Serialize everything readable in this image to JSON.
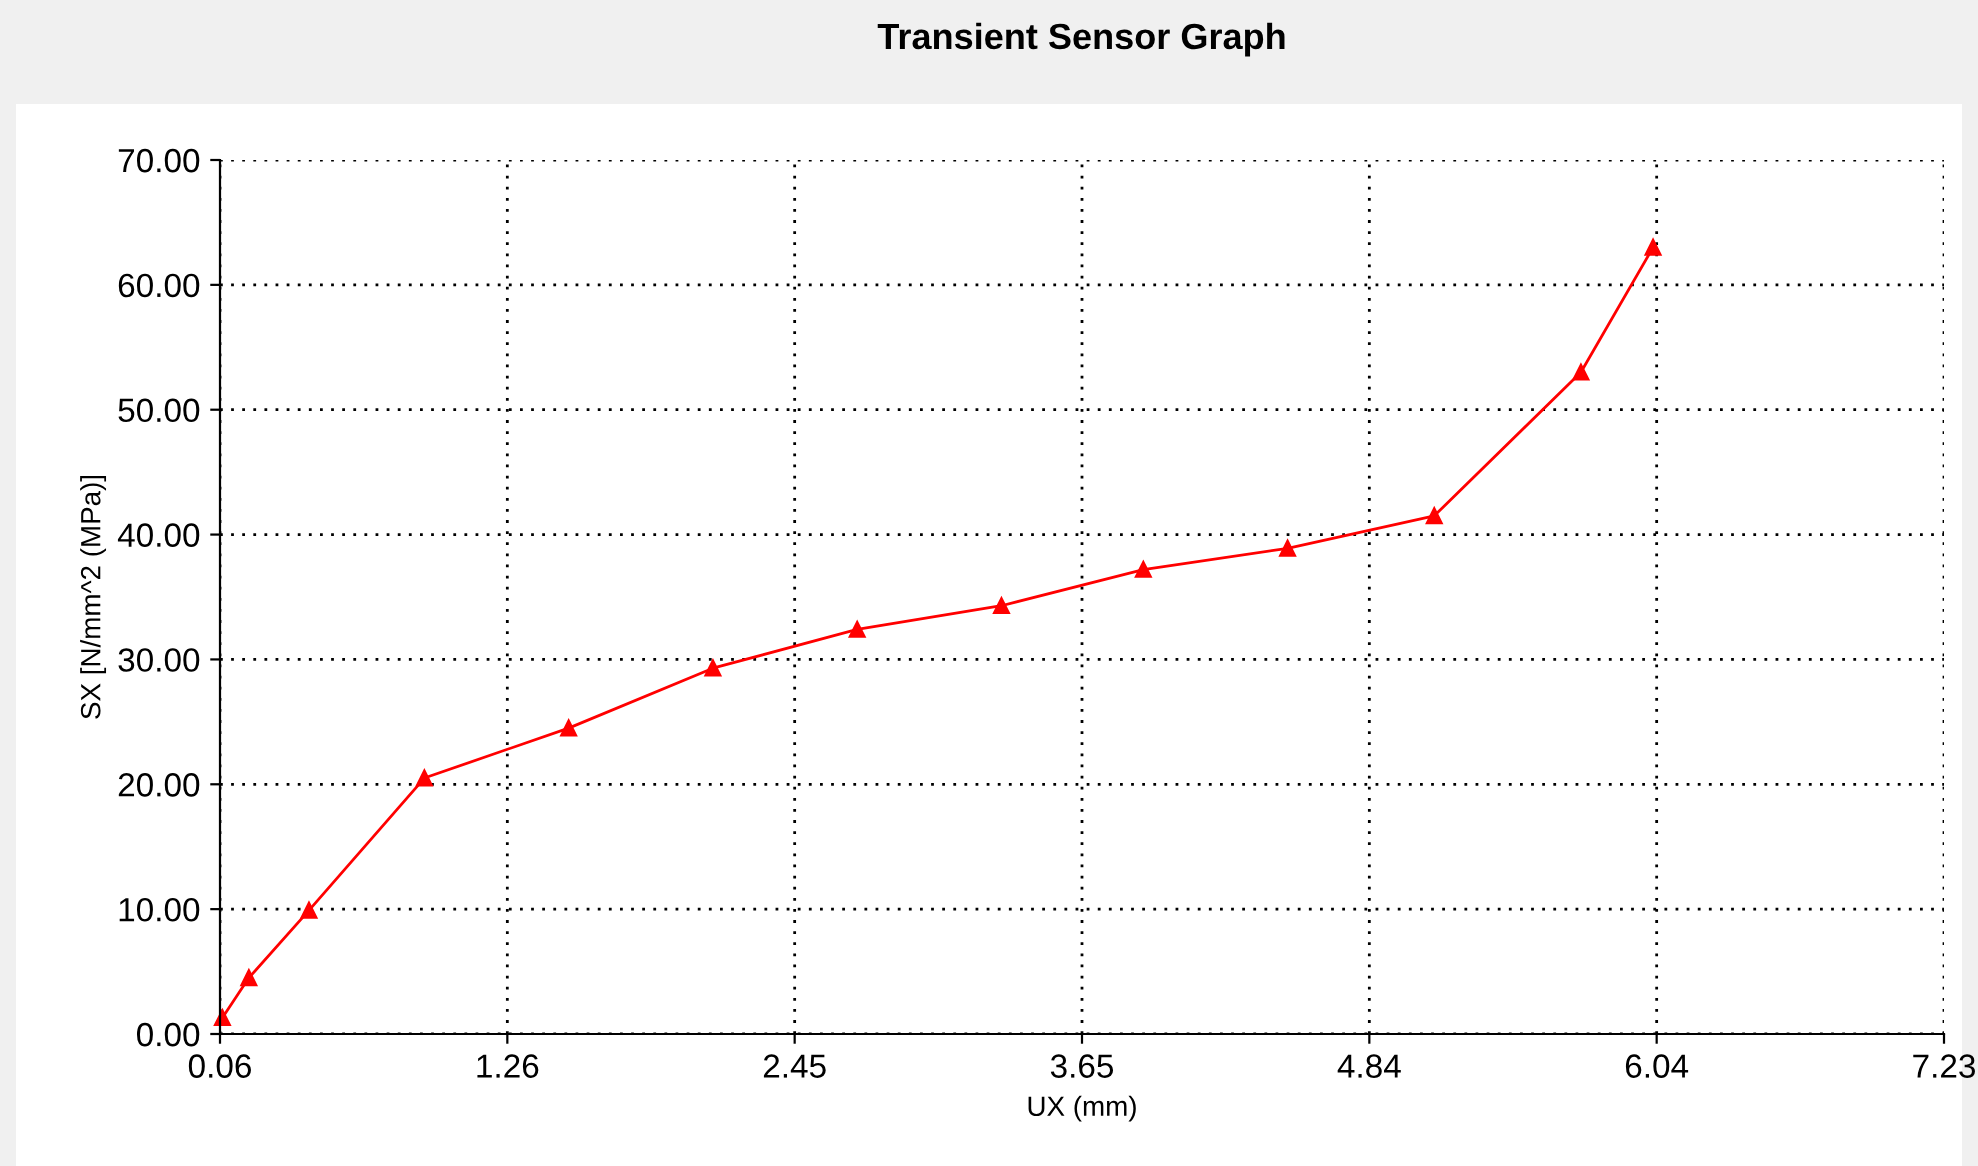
{
  "chart_data": {
    "type": "line",
    "title": "Transient Sensor Graph",
    "xlabel": "UX (mm)",
    "ylabel": "SX [N/mm^2 (MPa)]",
    "x": [
      0.07,
      0.18,
      0.43,
      0.91,
      1.51,
      2.11,
      2.71,
      3.31,
      3.9,
      4.5,
      5.11,
      5.72,
      6.02
    ],
    "series": [
      {
        "color": "#ff0000",
        "values": [
          1.3,
          4.5,
          9.9,
          20.5,
          24.5,
          29.3,
          32.4,
          34.3,
          37.2,
          38.9,
          41.5,
          53.0,
          63.0
        ]
      }
    ],
    "xlim": [
      0.06,
      7.23
    ],
    "xticks": [
      {
        "value": 0.06,
        "label": "0.06"
      },
      {
        "value": 1.255,
        "label": "1.26"
      },
      {
        "value": 2.45,
        "label": "2.45"
      },
      {
        "value": 3.645,
        "label": "3.65"
      },
      {
        "value": 4.84,
        "label": "4.84"
      },
      {
        "value": 6.035,
        "label": "6.04"
      },
      {
        "value": 7.23,
        "label": "7.23"
      }
    ],
    "ylim": [
      0,
      70
    ],
    "yticks": [
      {
        "value": 0,
        "label": "0.00"
      },
      {
        "value": 10,
        "label": "10.00"
      },
      {
        "value": 20,
        "label": "20.00"
      },
      {
        "value": 30,
        "label": "30.00"
      },
      {
        "value": 40,
        "label": "40.00"
      },
      {
        "value": 50,
        "label": "50.00"
      },
      {
        "value": 60,
        "label": "60.00"
      },
      {
        "value": 70,
        "label": "70.00"
      }
    ],
    "grid": true,
    "marker": "triangle",
    "line_style": "solid",
    "legend": false
  }
}
